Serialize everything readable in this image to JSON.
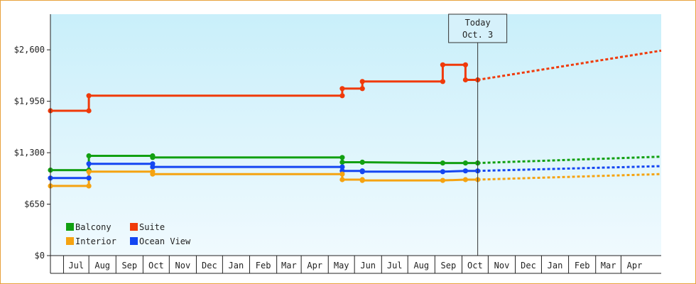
{
  "chart_data": {
    "type": "line",
    "y_ticks": [
      {
        "value": 0,
        "label": "$0"
      },
      {
        "value": 650,
        "label": "$650"
      },
      {
        "value": 1300,
        "label": "$1,300"
      },
      {
        "value": 1950,
        "label": "$1,950"
      },
      {
        "value": 2600,
        "label": "$2,600"
      }
    ],
    "ylim": [
      0,
      3050
    ],
    "xlim": [
      "2014-06-01",
      "2016-04-30"
    ],
    "x_tick_labels": [
      {
        "label": "Jul",
        "start": "2014-06-16",
        "end": "2014-07-15"
      },
      {
        "label": "Aug",
        "start": "2014-07-15",
        "end": "2014-08-15"
      },
      {
        "label": "Sep",
        "start": "2014-08-15",
        "end": "2014-09-15"
      },
      {
        "label": "Oct",
        "start": "2014-09-15",
        "end": "2014-10-15"
      },
      {
        "label": "Nov",
        "start": "2014-10-15",
        "end": "2014-11-15"
      },
      {
        "label": "Dec",
        "start": "2014-11-15",
        "end": "2014-12-15"
      },
      {
        "label": "Jan",
        "start": "2014-12-15",
        "end": "2015-01-15"
      },
      {
        "label": "Feb",
        "start": "2015-01-15",
        "end": "2015-02-15"
      },
      {
        "label": "Mar",
        "start": "2015-02-15",
        "end": "2015-03-15"
      },
      {
        "label": "Apr",
        "start": "2015-03-15",
        "end": "2015-04-15"
      },
      {
        "label": "May",
        "start": "2015-04-15",
        "end": "2015-05-15"
      },
      {
        "label": "Jun",
        "start": "2015-05-15",
        "end": "2015-06-15"
      },
      {
        "label": "Jul",
        "start": "2015-06-15",
        "end": "2015-07-15"
      },
      {
        "label": "Aug",
        "start": "2015-07-15",
        "end": "2015-08-15"
      },
      {
        "label": "Sep",
        "start": "2015-08-15",
        "end": "2015-09-15"
      },
      {
        "label": "Oct",
        "start": "2015-09-15",
        "end": "2015-10-15"
      },
      {
        "label": "Nov",
        "start": "2015-10-15",
        "end": "2015-11-15"
      },
      {
        "label": "Dec",
        "start": "2015-11-15",
        "end": "2015-12-15"
      },
      {
        "label": "Jan",
        "start": "2015-12-15",
        "end": "2016-01-15"
      },
      {
        "label": "Feb",
        "start": "2016-01-15",
        "end": "2016-02-15"
      },
      {
        "label": "Mar",
        "start": "2016-02-15",
        "end": "2016-03-15"
      },
      {
        "label": "Apr",
        "start": "2016-03-15",
        "end": "2016-04-15"
      }
    ],
    "today": {
      "line1": "Today",
      "line2": "Oct. 3",
      "date": "2015-10-03"
    },
    "series": [
      {
        "name": "Suite",
        "color": "#f03a0a",
        "points": [
          [
            "2014-06-01",
            1830
          ],
          [
            "2014-07-15",
            1830
          ],
          [
            "2014-07-15",
            2020
          ],
          [
            "2015-05-01",
            2020
          ],
          [
            "2015-05-01",
            2110
          ],
          [
            "2015-05-24",
            2110
          ],
          [
            "2015-05-24",
            2200
          ],
          [
            "2015-08-24",
            2200
          ],
          [
            "2015-08-24",
            2410
          ],
          [
            "2015-09-19",
            2410
          ],
          [
            "2015-09-19",
            2220
          ],
          [
            "2015-10-03",
            2220
          ]
        ],
        "projection": [
          [
            "2015-10-03",
            2220
          ],
          [
            "2016-04-30",
            2590
          ]
        ]
      },
      {
        "name": "Balcony",
        "color": "#12a012",
        "points": [
          [
            "2014-06-01",
            1080
          ],
          [
            "2014-07-15",
            1080
          ],
          [
            "2014-07-15",
            1260
          ],
          [
            "2014-09-26",
            1260
          ],
          [
            "2014-09-26",
            1240
          ],
          [
            "2015-05-01",
            1240
          ],
          [
            "2015-05-01",
            1180
          ],
          [
            "2015-05-24",
            1180
          ],
          [
            "2015-05-24",
            1180
          ],
          [
            "2015-08-24",
            1170
          ],
          [
            "2015-09-19",
            1170
          ],
          [
            "2015-10-03",
            1170
          ]
        ],
        "projection": [
          [
            "2015-10-03",
            1170
          ],
          [
            "2016-04-30",
            1250
          ]
        ]
      },
      {
        "name": "Ocean View",
        "color": "#1446f2",
        "points": [
          [
            "2014-06-01",
            980
          ],
          [
            "2014-07-15",
            980
          ],
          [
            "2014-07-15",
            1160
          ],
          [
            "2014-09-26",
            1160
          ],
          [
            "2014-09-26",
            1120
          ],
          [
            "2015-05-01",
            1120
          ],
          [
            "2015-05-01",
            1070
          ],
          [
            "2015-05-24",
            1070
          ],
          [
            "2015-05-24",
            1060
          ],
          [
            "2015-08-24",
            1060
          ],
          [
            "2015-09-19",
            1070
          ],
          [
            "2015-10-03",
            1070
          ]
        ],
        "projection": [
          [
            "2015-10-03",
            1070
          ],
          [
            "2016-04-30",
            1130
          ]
        ]
      },
      {
        "name": "Interior",
        "color": "#f5a311",
        "points": [
          [
            "2014-06-01",
            880
          ],
          [
            "2014-07-15",
            880
          ],
          [
            "2014-07-15",
            1060
          ],
          [
            "2014-09-26",
            1060
          ],
          [
            "2014-09-26",
            1030
          ],
          [
            "2015-05-01",
            1030
          ],
          [
            "2015-05-01",
            960
          ],
          [
            "2015-05-24",
            960
          ],
          [
            "2015-05-24",
            950
          ],
          [
            "2015-08-24",
            950
          ],
          [
            "2015-09-19",
            960
          ],
          [
            "2015-10-03",
            960
          ]
        ],
        "projection": [
          [
            "2015-10-03",
            960
          ],
          [
            "2016-04-30",
            1030
          ]
        ]
      }
    ],
    "legend": [
      {
        "name": "Balcony",
        "color": "#12a012"
      },
      {
        "name": "Suite",
        "color": "#f03a0a"
      },
      {
        "name": "Interior",
        "color": "#f5a311"
      },
      {
        "name": "Ocean View",
        "color": "#1446f2"
      }
    ],
    "legend_position": "bottom-left",
    "grid": false
  }
}
